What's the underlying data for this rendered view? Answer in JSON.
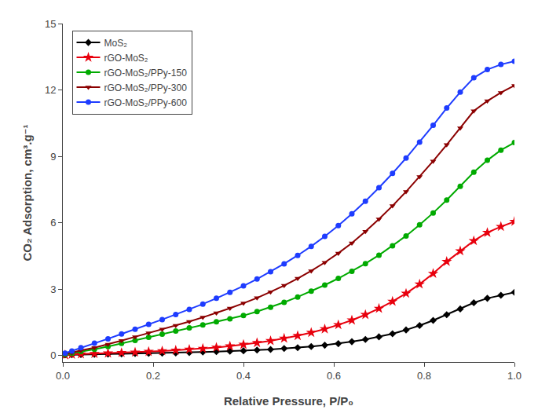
{
  "chart_data": {
    "type": "line",
    "xlabel": "Relative Pressure, P/P₀",
    "ylabel": "CO₂ Adsorption, cm³.g⁻¹",
    "xlim": [
      0.0,
      1.0
    ],
    "ylim": [
      -0.3,
      15.0
    ],
    "xticks": [
      {
        "value": 0.0,
        "label": "0.0"
      },
      0.2,
      0.4,
      0.6,
      0.8,
      {
        "value": 1.0,
        "label": "1.0"
      }
    ],
    "yticks": [
      0,
      3,
      6,
      9,
      12,
      15
    ],
    "grid": false,
    "legend": "upper left",
    "x": [
      0.005,
      0.02,
      0.04,
      0.07,
      0.1,
      0.13,
      0.16,
      0.19,
      0.22,
      0.25,
      0.28,
      0.31,
      0.34,
      0.37,
      0.4,
      0.43,
      0.46,
      0.49,
      0.52,
      0.55,
      0.58,
      0.61,
      0.64,
      0.67,
      0.7,
      0.73,
      0.76,
      0.79,
      0.82,
      0.85,
      0.88,
      0.91,
      0.94,
      0.97,
      1.0
    ],
    "series": [
      {
        "name": "MoS₂",
        "color": "#000000",
        "marker": "diamond",
        "values": [
          0.02,
          0.03,
          0.04,
          0.05,
          0.06,
          0.07,
          0.08,
          0.09,
          0.1,
          0.11,
          0.13,
          0.15,
          0.17,
          0.19,
          0.21,
          0.24,
          0.27,
          0.31,
          0.35,
          0.4,
          0.46,
          0.53,
          0.62,
          0.72,
          0.84,
          0.98,
          1.15,
          1.35,
          1.58,
          1.84,
          2.1,
          2.38,
          2.58,
          2.72,
          2.85
        ]
      },
      {
        "name": "rGO-MoS₂",
        "color": "#e8000d",
        "marker": "star",
        "values": [
          0.02,
          0.04,
          0.06,
          0.08,
          0.1,
          0.12,
          0.14,
          0.17,
          0.2,
          0.23,
          0.27,
          0.31,
          0.36,
          0.42,
          0.49,
          0.57,
          0.66,
          0.77,
          0.89,
          1.03,
          1.19,
          1.38,
          1.59,
          1.84,
          2.12,
          2.44,
          2.8,
          3.22,
          3.7,
          4.24,
          4.72,
          5.18,
          5.55,
          5.82,
          6.05
        ]
      },
      {
        "name": "rGO-MoS₂/PPy-150",
        "color": "#00aa00",
        "marker": "circle",
        "values": [
          0.05,
          0.1,
          0.18,
          0.28,
          0.4,
          0.54,
          0.68,
          0.82,
          0.96,
          1.1,
          1.24,
          1.38,
          1.52,
          1.65,
          1.8,
          1.98,
          2.18,
          2.4,
          2.64,
          2.9,
          3.18,
          3.48,
          3.8,
          4.15,
          4.53,
          4.95,
          5.4,
          5.9,
          6.44,
          7.02,
          7.64,
          8.28,
          8.82,
          9.28,
          9.62
        ]
      },
      {
        "name": "rGO-MoS₂/PPy-300",
        "color": "#8b0000",
        "marker": "triangle-down",
        "values": [
          0.06,
          0.12,
          0.22,
          0.35,
          0.5,
          0.67,
          0.84,
          1.01,
          1.18,
          1.35,
          1.53,
          1.72,
          1.92,
          2.13,
          2.36,
          2.6,
          2.87,
          3.16,
          3.48,
          3.82,
          4.2,
          4.62,
          5.08,
          5.6,
          6.16,
          6.76,
          7.4,
          8.08,
          8.78,
          9.52,
          10.28,
          11.05,
          11.5,
          11.88,
          12.2
        ]
      },
      {
        "name": "rGO-MoS₂/PPy-600",
        "color": "#1e3cff",
        "marker": "circle",
        "values": [
          0.1,
          0.2,
          0.35,
          0.55,
          0.75,
          0.97,
          1.18,
          1.4,
          1.62,
          1.85,
          2.08,
          2.32,
          2.58,
          2.85,
          3.14,
          3.45,
          3.78,
          4.14,
          4.52,
          4.93,
          5.38,
          5.87,
          6.4,
          6.97,
          7.58,
          8.23,
          8.92,
          9.64,
          10.4,
          11.18,
          11.9,
          12.55,
          12.92,
          13.15,
          13.3
        ]
      }
    ]
  }
}
